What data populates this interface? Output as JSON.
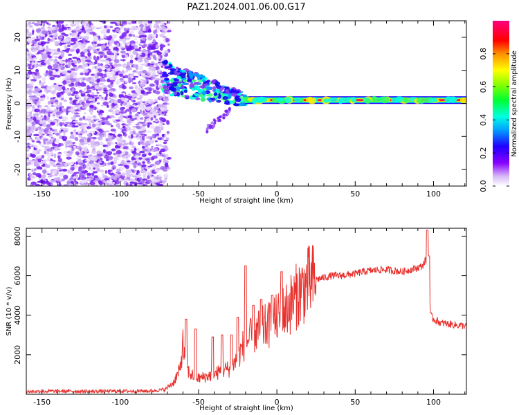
{
  "figure": {
    "title": "PAZ1.2024.001.06.00.G17"
  },
  "chart_data": [
    {
      "type": "heatmap",
      "panel": "top",
      "title": "PAZ1.2024.001.06.00.G17",
      "xlabel": "Height of straight line (km)",
      "ylabel": "Frequency (Hz)",
      "xlim": [
        -160,
        121
      ],
      "ylim": [
        -25,
        25
      ],
      "xticks": [
        -150,
        -100,
        -50,
        0,
        50,
        100
      ],
      "xtick_labels": [
        "-150",
        "-100",
        "-50",
        "0",
        "50",
        "100"
      ],
      "yticks": [
        -20,
        -10,
        0,
        10,
        20
      ],
      "ytick_labels": [
        "-20",
        "-10",
        "0",
        "10",
        "20"
      ],
      "colorbar": {
        "label": "Normalized spectral amplitude",
        "range": [
          0,
          1
        ],
        "ticks": [
          0.0,
          0.2,
          0.4,
          0.6,
          0.8
        ],
        "tick_labels": [
          "0.0",
          "0.2",
          "0.4",
          "0.6",
          "0.8"
        ],
        "colormap": "white-purple-blue-cyan-green-yellow-red-pink"
      },
      "features": {
        "noise_region_x": [
          -160,
          -73
        ],
        "noise_freq_range": [
          -25,
          25
        ],
        "transition_region_x": [
          -73,
          -20
        ],
        "main_line_frequency": 1.0,
        "main_line_x": [
          -20,
          121
        ]
      }
    },
    {
      "type": "line",
      "panel": "bottom",
      "xlabel": "Height of straight line (km)",
      "ylabel": "SNR (10 * v/v)",
      "xlim": [
        -160,
        121
      ],
      "ylim": [
        0,
        8400
      ],
      "xticks": [
        -150,
        -100,
        -50,
        0,
        50,
        100
      ],
      "xtick_labels": [
        "-150",
        "-100",
        "-50",
        "0",
        "50",
        "100"
      ],
      "yticks": [
        2000,
        4000,
        6000,
        8000
      ],
      "ytick_labels": [
        "2000",
        "4000",
        "6000",
        "8000"
      ],
      "color": "#e8302c",
      "series": [
        {
          "x": [
            -160,
            -140,
            -120,
            -100,
            -80,
            -72,
            -66,
            -62,
            -60,
            -58,
            -55,
            -50,
            -45,
            -40,
            -35,
            -30,
            -25,
            -22,
            -20,
            -15,
            -10,
            -5,
            0,
            5,
            10,
            15,
            20,
            25,
            30,
            35,
            40,
            45,
            50,
            55,
            60,
            65,
            70,
            75,
            80,
            85,
            90,
            93,
            95,
            97,
            98,
            100,
            105,
            110,
            115,
            121
          ],
          "values": [
            100,
            120,
            110,
            120,
            130,
            200,
            600,
            1200,
            2500,
            1300,
            1000,
            800,
            900,
            1000,
            1200,
            1300,
            1800,
            2400,
            2600,
            3000,
            3300,
            3500,
            3800,
            4200,
            4700,
            5200,
            5600,
            5800,
            5900,
            6000,
            6000,
            6050,
            6100,
            6200,
            6250,
            6300,
            6300,
            6250,
            6200,
            6300,
            6400,
            6500,
            6800,
            6200,
            4000,
            3800,
            3600,
            3550,
            3500,
            3450
          ]
        }
      ],
      "spikes": {
        "x": [
          -58,
          -52,
          -41,
          -35,
          -29,
          -25,
          -20,
          -15,
          -10,
          -3,
          -1,
          3,
          96,
          97
        ],
        "values": [
          3800,
          3300,
          2900,
          3000,
          3000,
          3900,
          6500,
          4500,
          4800,
          5000,
          1200,
          6200,
          8300,
          7000
        ]
      }
    }
  ]
}
